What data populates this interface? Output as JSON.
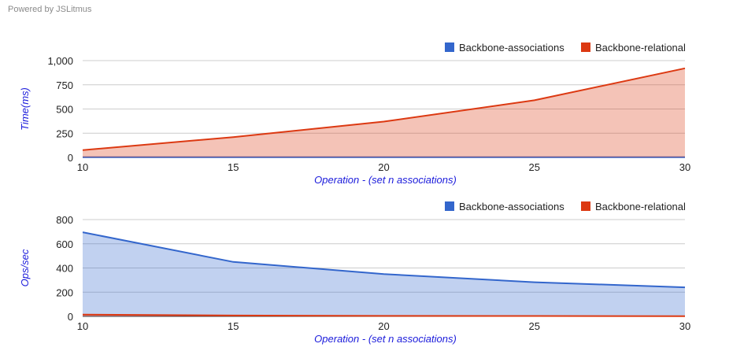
{
  "header": {
    "powered_by": "Powered by JSLitmus"
  },
  "colors": {
    "associations": "#3366cc",
    "relational": "#dc3912",
    "grid": "#cccccc",
    "axis_title": "#1a1adb"
  },
  "chart_data": [
    {
      "type": "area",
      "xlabel": "Operation - (set n associations)",
      "ylabel": "Time(ms)",
      "x": [
        10,
        15,
        20,
        25,
        30
      ],
      "xticks": [
        "10",
        "15",
        "20",
        "25",
        "30"
      ],
      "ylim": [
        0,
        1000
      ],
      "yticks": [
        "0",
        "250",
        "500",
        "750",
        "1,000"
      ],
      "ytick_values": [
        0,
        250,
        500,
        750,
        1000
      ],
      "grid": true,
      "legend": "top-right",
      "series": [
        {
          "name": "Backbone-associations",
          "color": "#3366cc",
          "values": [
            1.5,
            1.5,
            2,
            2,
            2
          ]
        },
        {
          "name": "Backbone-relational",
          "color": "#dc3912",
          "values": [
            75,
            210,
            370,
            590,
            920
          ]
        }
      ]
    },
    {
      "type": "area",
      "xlabel": "Operation - (set n associations)",
      "ylabel": "Ops/sec",
      "x": [
        10,
        15,
        20,
        25,
        30
      ],
      "xticks": [
        "10",
        "15",
        "20",
        "25",
        "30"
      ],
      "ylim": [
        0,
        800
      ],
      "yticks": [
        "0",
        "200",
        "400",
        "600",
        "800"
      ],
      "ytick_values": [
        0,
        200,
        400,
        600,
        800
      ],
      "grid": true,
      "legend": "top-right",
      "series": [
        {
          "name": "Backbone-associations",
          "color": "#3366cc",
          "values": [
            695,
            450,
            350,
            282,
            240
          ]
        },
        {
          "name": "Backbone-relational",
          "color": "#dc3912",
          "values": [
            15,
            7,
            4,
            3,
            2
          ]
        }
      ]
    }
  ]
}
